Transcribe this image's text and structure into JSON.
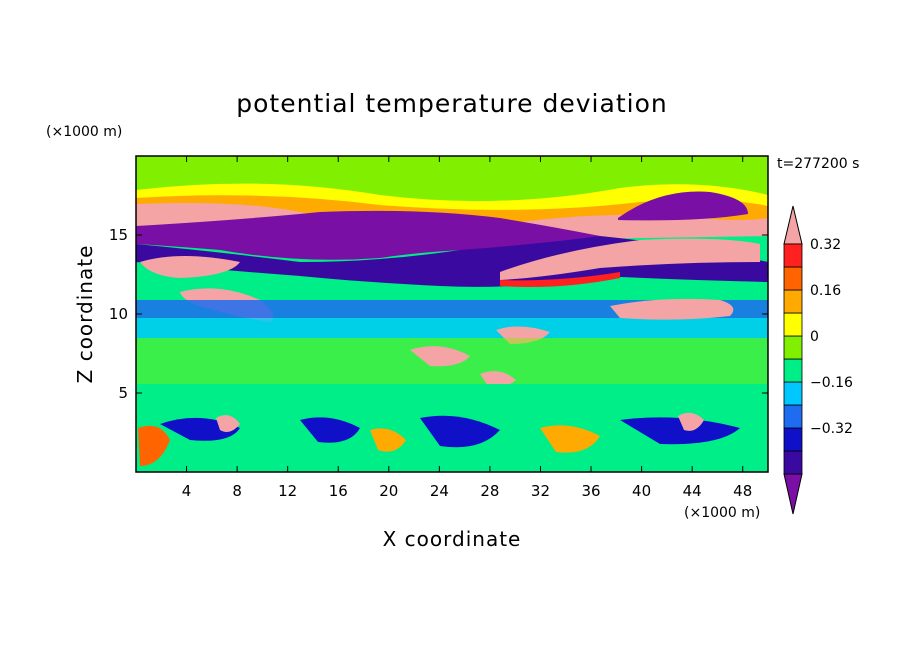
{
  "chart_data": {
    "type": "heatmap",
    "title": "potential temperature deviation",
    "xlabel": "X coordinate",
    "ylabel": "Z coordinate",
    "x_unit_label": "(×1000 m)",
    "y_unit_label": "(×1000 m)",
    "time_label": "t=277200 s",
    "xlim": [
      0,
      50
    ],
    "ylim": [
      0,
      20
    ],
    "x_ticks": [
      4,
      8,
      12,
      16,
      20,
      24,
      28,
      32,
      36,
      40,
      44,
      48
    ],
    "y_ticks": [
      5,
      10,
      15
    ],
    "colorbar": {
      "levels": [
        -0.48,
        -0.4,
        -0.32,
        -0.24,
        -0.16,
        -0.08,
        0,
        0.08,
        0.16,
        0.24,
        0.32,
        0.4
      ],
      "labeled_levels": [
        0.32,
        0.16,
        0,
        -0.16,
        -0.32
      ],
      "labels": [
        "0.32",
        "0.16",
        "0",
        "−0.16",
        "−0.32"
      ],
      "colors_low_to_high": [
        "#7a0fa5",
        "#3a0aa0",
        "#1010c8",
        "#1e6cf0",
        "#00c8ff",
        "#00ee88",
        "#80f000",
        "#ffff00",
        "#ffaa00",
        "#ff6400",
        "#ff2020",
        "#f4a4a4"
      ]
    }
  }
}
